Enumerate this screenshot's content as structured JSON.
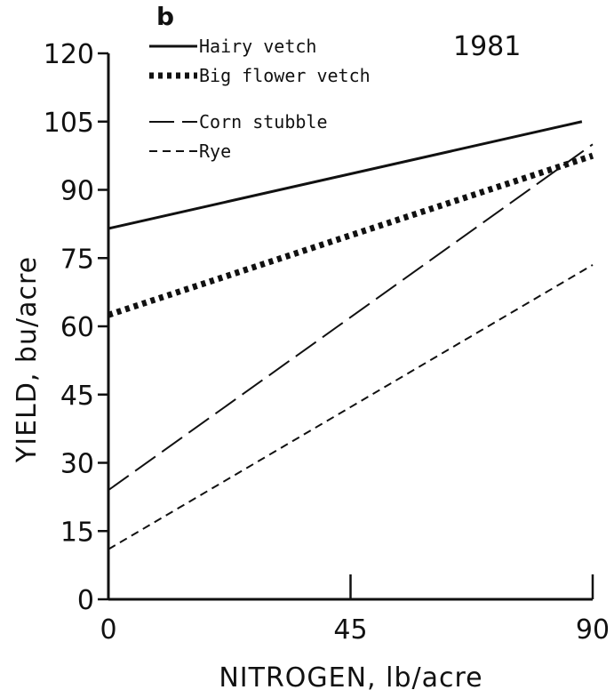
{
  "chart_data": {
    "type": "line",
    "panel_label": "b",
    "year_label": "1981",
    "xlabel": "NITROGEN, lb/acre",
    "ylabel": "YIELD, bu/acre",
    "xlim": [
      0,
      90
    ],
    "ylim": [
      0,
      120
    ],
    "x_ticks": [
      0,
      45,
      90
    ],
    "y_ticks": [
      0,
      15,
      30,
      45,
      60,
      75,
      90,
      105,
      120
    ],
    "grid": false,
    "legend_position": "top-left",
    "series": [
      {
        "name": "Hairy vetch",
        "style": "solid",
        "x": [
          0,
          88
        ],
        "y": [
          81.5,
          105
        ]
      },
      {
        "name": "Big flower vetch",
        "style": "dotted",
        "x": [
          0,
          90
        ],
        "y": [
          62.5,
          97.5
        ]
      },
      {
        "name": "Corn stubble",
        "style": "long-dash",
        "x": [
          0,
          90
        ],
        "y": [
          24,
          100
        ]
      },
      {
        "name": "Rye",
        "style": "short-dash",
        "x": [
          0,
          90
        ],
        "y": [
          11,
          73.5
        ]
      }
    ]
  }
}
